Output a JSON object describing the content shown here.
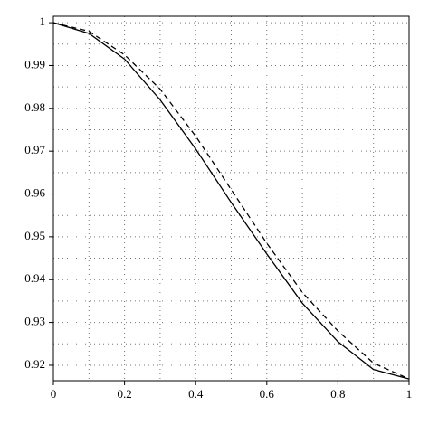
{
  "chart_data": {
    "type": "line",
    "x": [
      0,
      0.1,
      0.2,
      0.3,
      0.4,
      0.5,
      0.6,
      0.7,
      0.8,
      0.9,
      1
    ],
    "series": [
      {
        "color": "#000000",
        "dash": "solid",
        "values": [
          1,
          0.9975,
          0.9915,
          0.982,
          0.9705,
          0.958,
          0.946,
          0.9345,
          0.9255,
          0.919,
          0.9168
        ]
      },
      {
        "color": "#000000",
        "dash": "dashed",
        "values": [
          1,
          0.998,
          0.9925,
          0.9845,
          0.9735,
          0.961,
          0.9485,
          0.937,
          0.928,
          0.9205,
          0.9168
        ]
      }
    ],
    "xlim": [
      0,
      1
    ],
    "xticks": [
      0,
      0.2,
      0.4,
      0.6,
      0.8,
      1
    ],
    "ylim": [
      0.9164,
      1.0015
    ],
    "yticks": [
      0.92,
      0.93,
      0.94,
      0.95,
      0.96,
      0.97,
      0.98,
      0.99,
      1
    ],
    "grid": true,
    "minor_grid": true
  }
}
